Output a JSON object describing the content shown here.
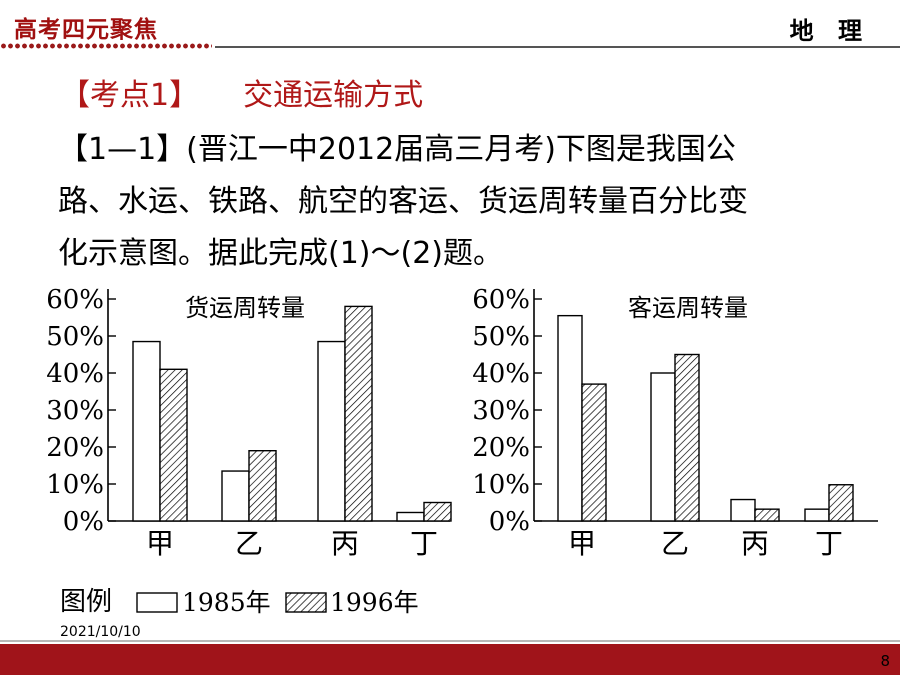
{
  "header": {
    "title": "高考四元聚焦",
    "subject": "地 理"
  },
  "topic": {
    "bracket": "【考点1】",
    "name": "交通运输方式"
  },
  "question": {
    "lines": [
      "【1—1】(晋江一中2012届高三月考)下图是我国公",
      "路、水运、铁路、航空的客运、货运周转量百分比变",
      "化示意图。据此完成(1)～(2)题。"
    ]
  },
  "chart_data": [
    {
      "type": "bar",
      "title": "货运周转量",
      "categories": [
        "甲",
        "乙",
        "丙",
        "丁"
      ],
      "series": [
        {
          "name": "1985年",
          "values": [
            48.5,
            13.5,
            48.5,
            2.3
          ]
        },
        {
          "name": "1996年",
          "values": [
            41,
            19,
            58,
            5
          ]
        }
      ],
      "ylim": [
        0,
        60
      ],
      "yticks": [
        "0%",
        "10%",
        "20%",
        "30%",
        "40%",
        "50%",
        "60%"
      ],
      "xlabel": "",
      "ylabel": ""
    },
    {
      "type": "bar",
      "title": "客运周转量",
      "categories": [
        "甲",
        "乙",
        "丙",
        "丁"
      ],
      "series": [
        {
          "name": "1985年",
          "values": [
            55.5,
            40,
            5.8,
            3.2
          ]
        },
        {
          "name": "1996年",
          "values": [
            37,
            45,
            3.2,
            9.8
          ]
        }
      ],
      "ylim": [
        0,
        60
      ],
      "yticks": [
        "0%",
        "10%",
        "20%",
        "30%",
        "40%",
        "50%",
        "60%"
      ],
      "xlabel": "",
      "ylabel": ""
    }
  ],
  "legend": {
    "label": "图例",
    "items": [
      {
        "name": "1985年",
        "style": "white"
      },
      {
        "name": "1996年",
        "style": "hatched"
      }
    ]
  },
  "footer": {
    "date": "2021/10/10",
    "page_number": "8"
  },
  "colors": {
    "brand_red": "#a0141a",
    "topic_red": "#b01818"
  }
}
